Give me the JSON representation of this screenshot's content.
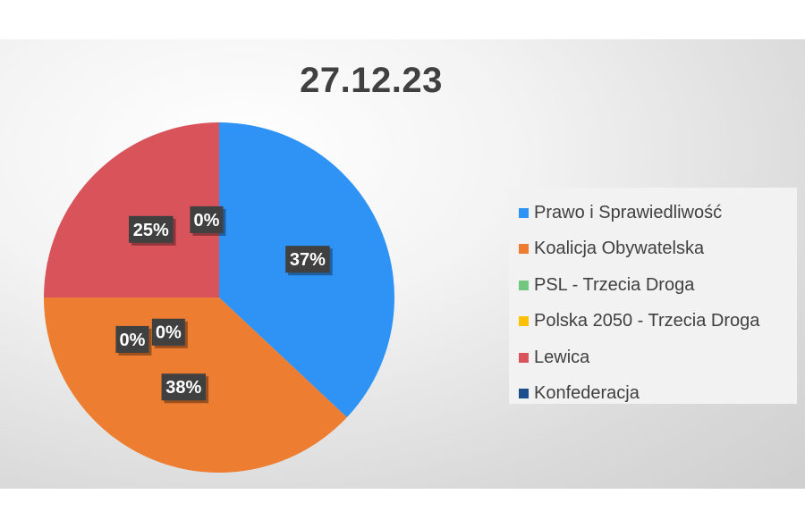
{
  "chart_data": {
    "type": "pie",
    "title": "27.12.23",
    "categories": [
      "Prawo i Sprawiedliwość",
      "Koalicja Obywatelska",
      "PSL - Trzecia Droga",
      "Polska 2050 - Trzecia Droga",
      "Lewica",
      "Konfederacja"
    ],
    "values": [
      37,
      38,
      0,
      0,
      25,
      0
    ],
    "data_labels": [
      "37%",
      "38%",
      "0%",
      "0%",
      "25%",
      "0%"
    ],
    "colors": [
      "#2f93f5",
      "#ed7d31",
      "#70c77d",
      "#ffc000",
      "#d9535b",
      "#1f4e8c"
    ],
    "legend_position": "right"
  }
}
